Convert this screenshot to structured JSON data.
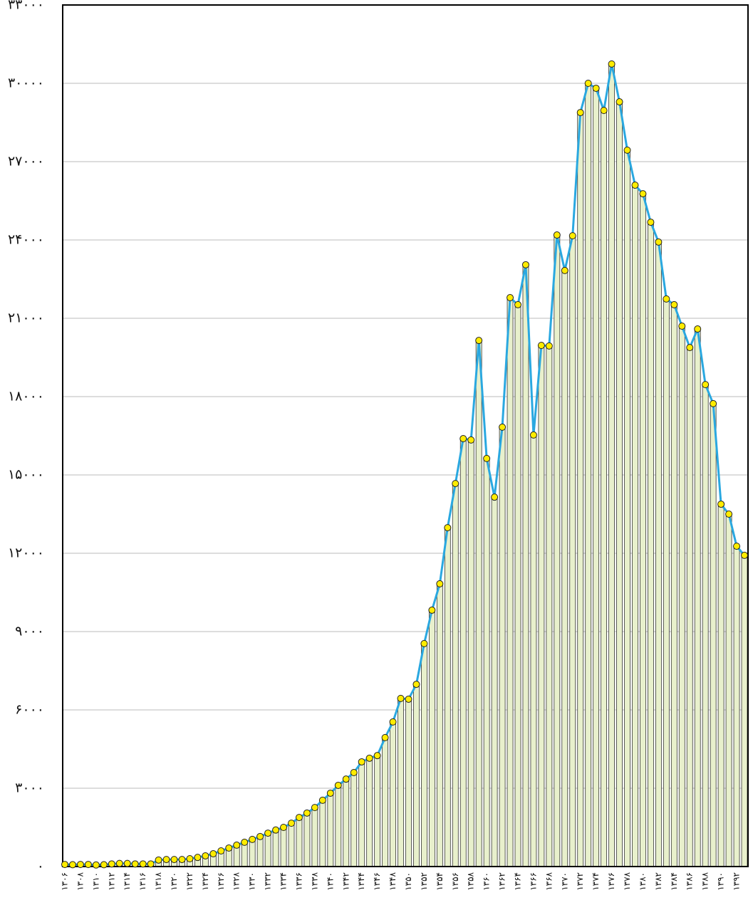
{
  "chart_data": {
    "type": "bar",
    "categories": [
      "۱۳۰۶",
      null,
      "۱۳۰۸",
      null,
      "۱۳۱۰",
      null,
      "۱۳۱۲",
      null,
      "۱۳۱۴",
      null,
      "۱۳۱۶",
      null,
      "۱۳۱۸",
      null,
      "۱۳۲۰",
      null,
      "۱۳۲۲",
      null,
      "۱۳۲۴",
      null,
      "۱۳۲۶",
      null,
      "۱۳۲۸",
      null,
      "۱۳۳۰",
      null,
      "۱۳۳۲",
      null,
      "۱۳۳۴",
      null,
      "۱۳۳۶",
      null,
      "۱۳۳۸",
      null,
      "۱۳۴۰",
      null,
      "۱۳۴۲",
      null,
      "۱۳۴۴",
      null,
      "۱۳۴۶",
      null,
      "۱۳۴۸",
      null,
      "۱۳۵۰",
      null,
      "۱۳۵۲",
      null,
      "۱۳۵۴",
      null,
      "۱۳۵۶",
      null,
      "۱۳۵۸",
      null,
      "۱۳۶۰",
      null,
      "۱۳۶۲",
      null,
      "۱۳۶۴",
      null,
      "۱۳۶۶",
      null,
      "۱۳۶۸",
      null,
      "۱۳۷۰",
      null,
      "۱۳۷۲",
      null,
      "۱۳۷۴",
      null,
      "۱۳۷۶",
      null,
      "۱۳۷۸",
      null,
      "۱۳۸۰",
      null,
      "۱۳۸۲",
      null,
      "۱۳۸۴",
      null,
      "۱۳۸۶",
      null,
      "۱۳۸۸",
      null,
      "۱۳۹۰",
      null,
      "۱۳۹۲",
      null
    ],
    "values": [
      80,
      70,
      80,
      80,
      60,
      70,
      100,
      120,
      120,
      100,
      100,
      100,
      250,
      270,
      270,
      270,
      300,
      350,
      410,
      490,
      600,
      710,
      820,
      930,
      1040,
      1150,
      1280,
      1400,
      1500,
      1660,
      1880,
      2050,
      2260,
      2540,
      2810,
      3110,
      3350,
      3600,
      4010,
      4150,
      4250,
      4940,
      5540,
      6440,
      6410,
      6980,
      8540,
      9820,
      10830,
      12980,
      14670,
      16390,
      16340,
      20150,
      15630,
      14150,
      16830,
      21790,
      21520,
      23050,
      16530,
      19960,
      19940,
      24190,
      22830,
      24160,
      28880,
      30000,
      29810,
      28960,
      30740,
      29290,
      27440,
      26100,
      25770,
      24680,
      23920,
      21740,
      21520,
      20700,
      19880,
      20590,
      18460,
      17730,
      13880,
      13500,
      12270,
      11920
    ],
    "color": "#e8f0cc",
    "line_color": "#2aa8e0",
    "marker_color": "#ffec00",
    "ylim": [
      0,
      33000
    ],
    "yticks": [
      {
        "value": 0,
        "label": "۰"
      },
      {
        "value": 3000,
        "label": "۳۰۰۰"
      },
      {
        "value": 6000,
        "label": "۶۰۰۰"
      },
      {
        "value": 9000,
        "label": "۹۰۰۰"
      },
      {
        "value": 12000,
        "label": "۱۲۰۰۰"
      },
      {
        "value": 15000,
        "label": "۱۵۰۰۰"
      },
      {
        "value": 18000,
        "label": "۱۸۰۰۰"
      },
      {
        "value": 21000,
        "label": "۲۱۰۰۰"
      },
      {
        "value": 24000,
        "label": "۲۴۰۰۰"
      },
      {
        "value": 27000,
        "label": "۲۷۰۰۰"
      },
      {
        "value": 30000,
        "label": "۳۰۰۰۰"
      },
      {
        "value": 33000,
        "label": "۳۳۰۰۰"
      }
    ],
    "grid": true
  }
}
